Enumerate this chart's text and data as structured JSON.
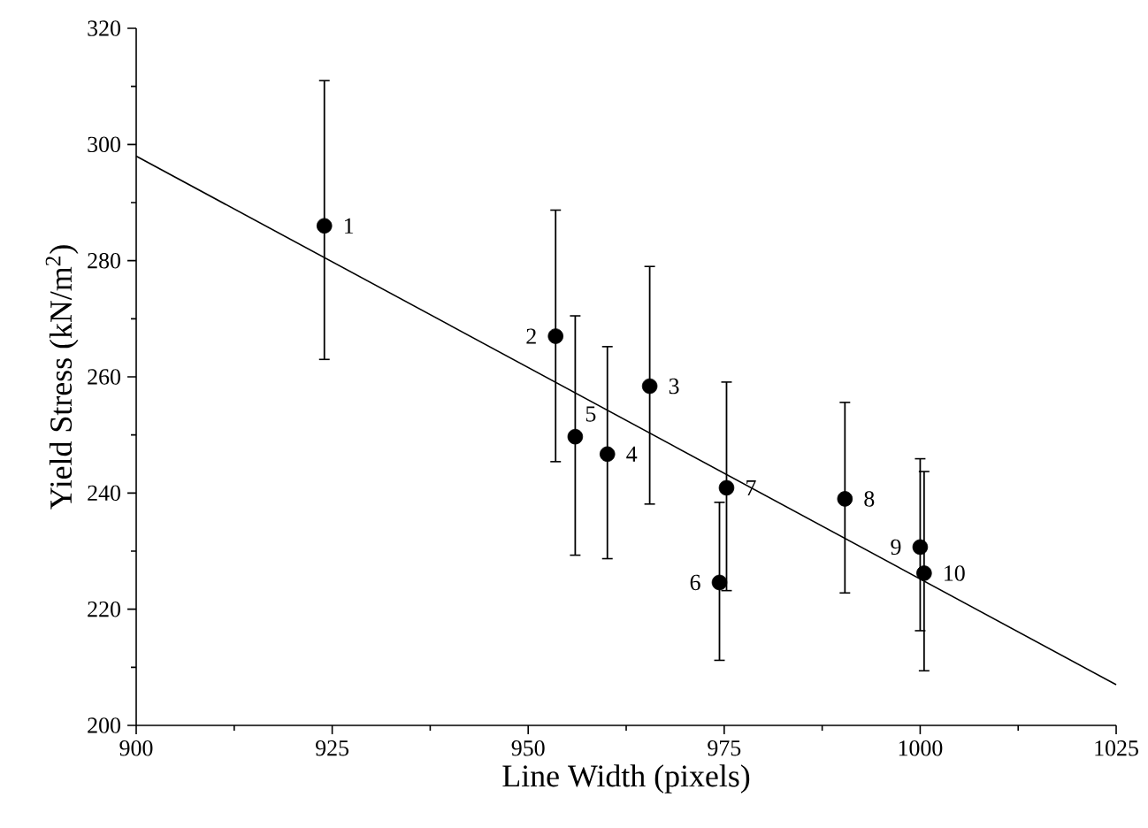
{
  "chart_data": {
    "type": "scatter",
    "xlabel": "Line Width (pixels)",
    "ylabel": "Yield Stress (kN/m$^{2}$)",
    "xlim": [
      900,
      1025
    ],
    "ylim": [
      200,
      320
    ],
    "xticks": [
      900,
      925,
      950,
      975,
      1000,
      1025
    ],
    "yticks": [
      200,
      220,
      240,
      260,
      280,
      300,
      320
    ],
    "marker": "circle",
    "grid": false,
    "series": [
      {
        "color": "#000000",
        "x": [
          924,
          953.5,
          965.5,
          960.1,
          956.0,
          974.4,
          975.3,
          990.4,
          1000.0,
          1000.5
        ],
        "values": [
          286,
          267,
          258.4,
          246.7,
          249.7,
          224.6,
          240.9,
          239.0,
          230.7,
          226.2
        ],
        "errors": [
          [
            263,
            311
          ],
          [
            245.4,
            288.7
          ],
          [
            238.1,
            279
          ],
          [
            228.7,
            265.2
          ],
          [
            229.3,
            270.5
          ],
          [
            211.2,
            238.4
          ],
          [
            223.2,
            259.1
          ],
          [
            222.8,
            255.6
          ],
          [
            216.3,
            245.9
          ],
          [
            209.4,
            243.7
          ]
        ]
      },
      {
        "type": "line",
        "marker": "none",
        "color": "#000000",
        "x": [
          900,
          1025
        ],
        "values": [
          298,
          207
        ]
      }
    ],
    "annotations": [
      {
        "text": "1",
        "x": 924,
        "y": 286
      },
      {
        "text": "2",
        "x": 953.5,
        "y": 267
      },
      {
        "text": "3",
        "x": 965.5,
        "y": 258.4
      },
      {
        "text": "4",
        "x": 960.1,
        "y": 246.7
      },
      {
        "text": "5",
        "x": 956.0,
        "y": 249.7
      },
      {
        "text": "6",
        "x": 974.4,
        "y": 224.6
      },
      {
        "text": "7",
        "x": 975.3,
        "y": 240.9
      },
      {
        "text": "8",
        "x": 990.4,
        "y": 239.0
      },
      {
        "text": "9",
        "x": 1000.0,
        "y": 230.7
      },
      {
        "text": "10",
        "x": 1000.5,
        "y": 226.2
      }
    ]
  }
}
